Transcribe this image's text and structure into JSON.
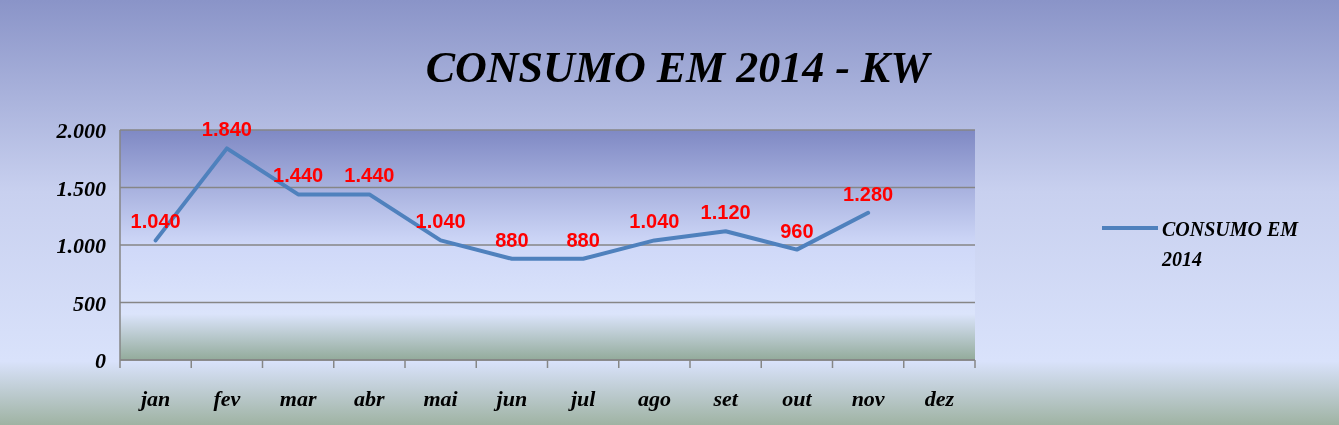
{
  "chart_data": {
    "type": "line",
    "title": "CONSUMO EM 2014 - KW",
    "categories": [
      "jan",
      "fev",
      "mar",
      "abr",
      "mai",
      "jun",
      "jul",
      "ago",
      "set",
      "out",
      "nov",
      "dez"
    ],
    "series": [
      {
        "name": "CONSUMO EM 2014",
        "color": "#4f81bd",
        "values": [
          1040,
          1840,
          1440,
          1440,
          1040,
          880,
          880,
          1040,
          1120,
          960,
          1280,
          null
        ],
        "value_labels": [
          "1.040",
          "1.840",
          "1.440",
          "1.440",
          "1.040",
          "880",
          "880",
          "1.040",
          "1.120",
          "960",
          "1.280",
          null
        ]
      }
    ],
    "ylim": [
      0,
      2000
    ],
    "yticks": [
      {
        "value": 0,
        "label": "0"
      },
      {
        "value": 500,
        "label": "500"
      },
      {
        "value": 1000,
        "label": "1.000"
      },
      {
        "value": 1500,
        "label": "1.500"
      },
      {
        "value": 2000,
        "label": "2.000"
      }
    ],
    "grid": "y",
    "legend": "right",
    "marker": "none",
    "line_style": "solid"
  }
}
